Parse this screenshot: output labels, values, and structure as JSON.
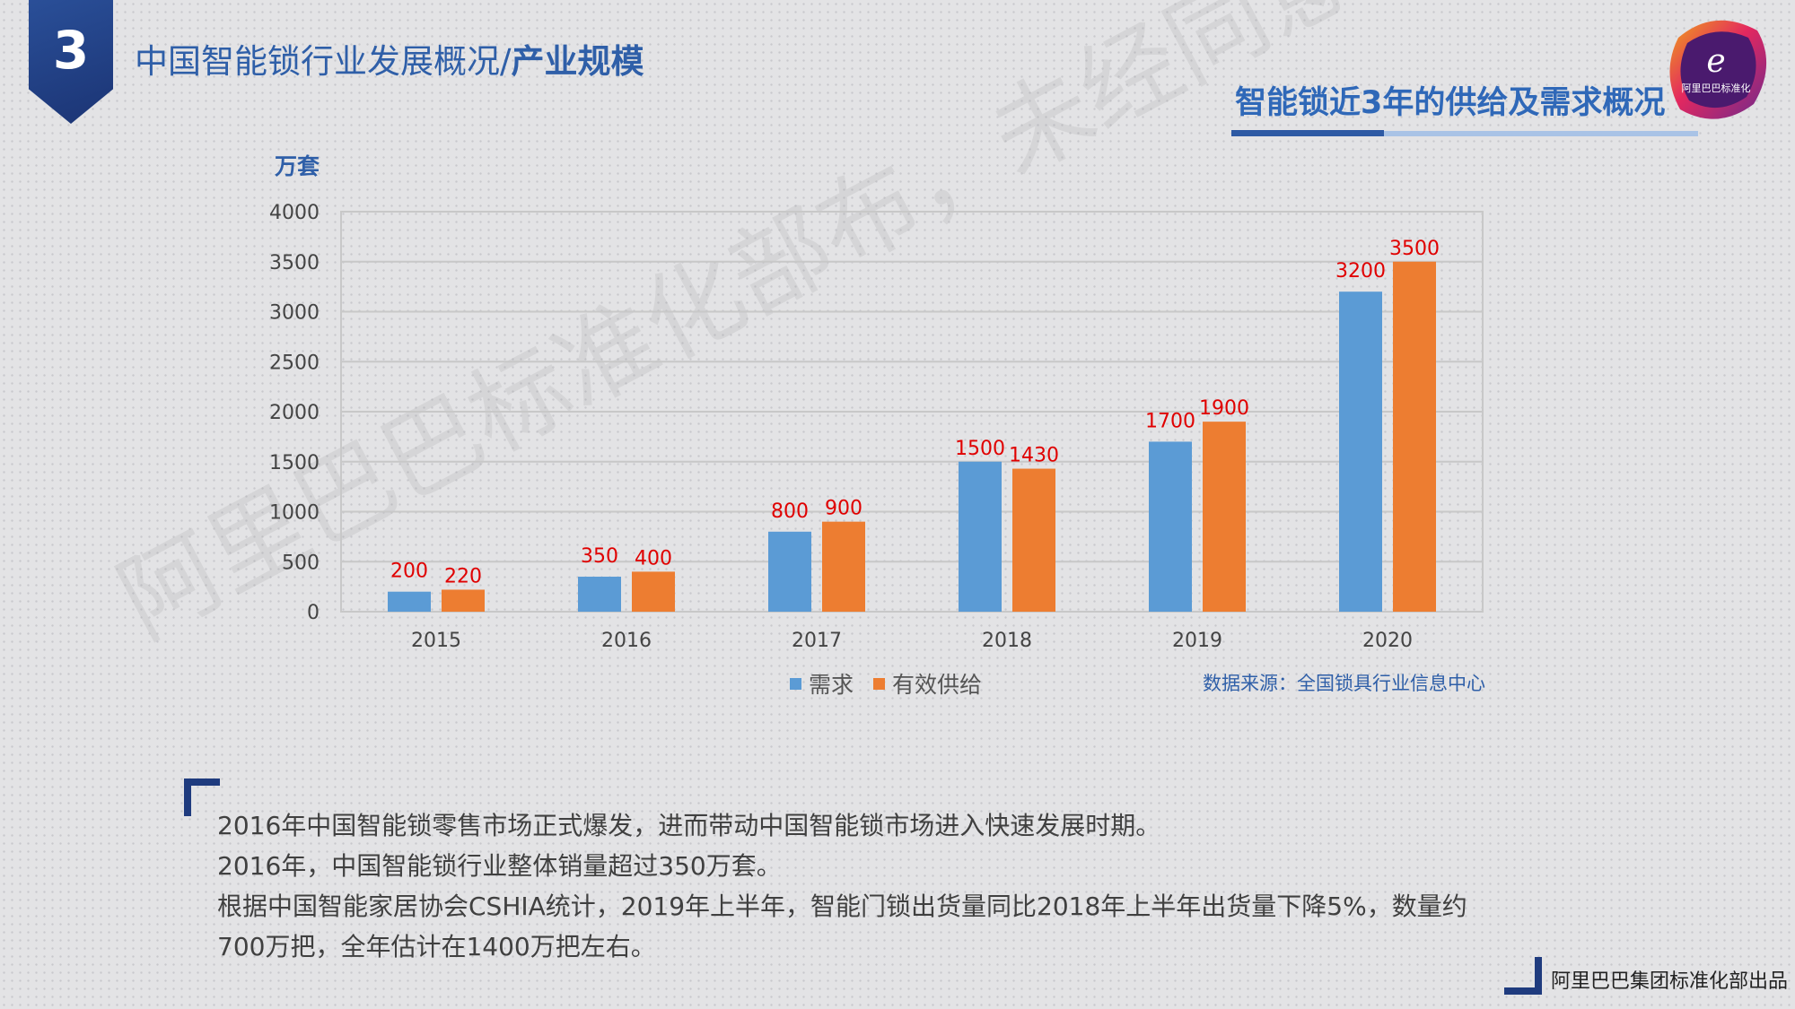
{
  "header": {
    "section_number": "3",
    "title_main": "中国智能锁行业发展概况/",
    "title_strong": "产业规模",
    "subtitle": "智能锁近3年的供给及需求概况"
  },
  "logo": {
    "text": "阿里巴巴标准化"
  },
  "watermark": "阿里巴巴标准化部布，未经同意禁止转发",
  "colors": {
    "demand": "#5b9bd5",
    "supply": "#ed7d31",
    "label": "#e00000",
    "grid": "#c8c8c8",
    "accent": "#2f5fa8"
  },
  "chart_data": {
    "type": "bar",
    "ylabel": "万套",
    "ylim": [
      0,
      4000
    ],
    "yticks": [
      0,
      500,
      1000,
      1500,
      2000,
      2500,
      3000,
      3500,
      4000
    ],
    "categories": [
      "2015",
      "2016",
      "2017",
      "2018",
      "2019",
      "2020"
    ],
    "series": [
      {
        "name": "需求",
        "values": [
          200,
          350,
          800,
          1500,
          1700,
          3200
        ]
      },
      {
        "name": "有效供给",
        "values": [
          220,
          400,
          900,
          1430,
          1900,
          3500
        ]
      }
    ],
    "grid": true,
    "legend": "bottom-center"
  },
  "source": "数据来源：全国锁具行业信息中心",
  "notes": [
    "2016年中国智能锁零售市场正式爆发，进而带动中国智能锁市场进入快速发展时期。",
    "2016年，中国智能锁行业整体销量超过350万套。",
    "根据中国智能家居协会CSHIA统计，2019年上半年，智能门锁出货量同比2018年上半年出货量下降5%，数量约700万把，全年估计在1400万把左右。"
  ],
  "footer": "阿里巴巴集团标准化部出品"
}
